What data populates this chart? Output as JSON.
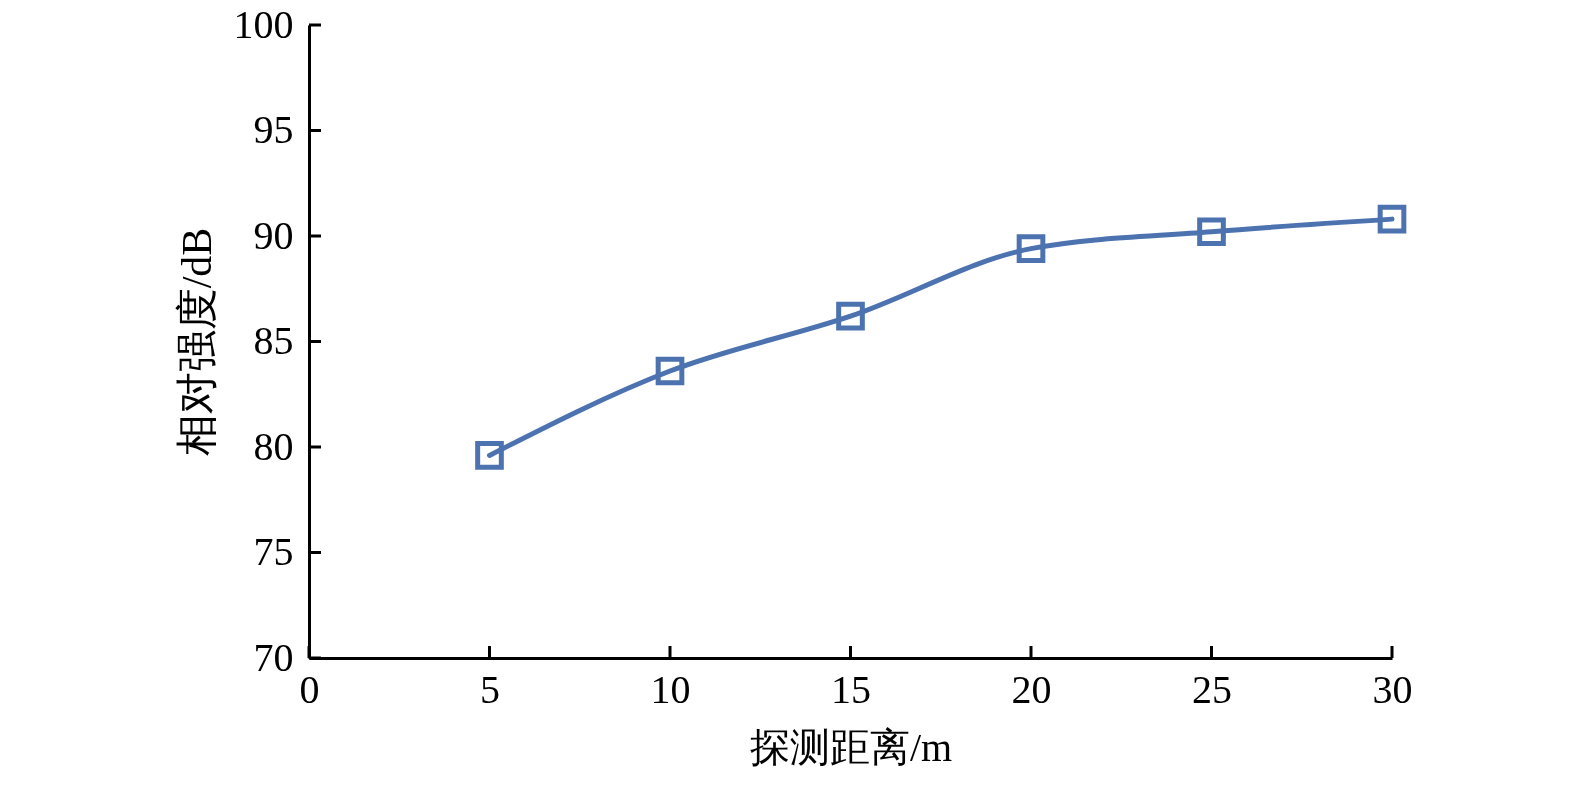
{
  "chart_data": {
    "type": "line",
    "xlabel": "探测距离/m",
    "ylabel": "相对强度/dB",
    "x": [
      5,
      10,
      15,
      20,
      25,
      30
    ],
    "series": [
      {
        "color": "#4c72b0",
        "values": [
          79.6,
          83.6,
          86.2,
          89.4,
          90.2,
          90.8
        ]
      }
    ],
    "xlim": [
      0,
      30
    ],
    "ylim": [
      70,
      100
    ],
    "xticks": [
      0,
      5,
      10,
      15,
      20,
      25,
      30
    ],
    "yticks": [
      70,
      75,
      80,
      85,
      90,
      95,
      100
    ],
    "grid": false,
    "marker": "square",
    "line_style": "solid"
  }
}
